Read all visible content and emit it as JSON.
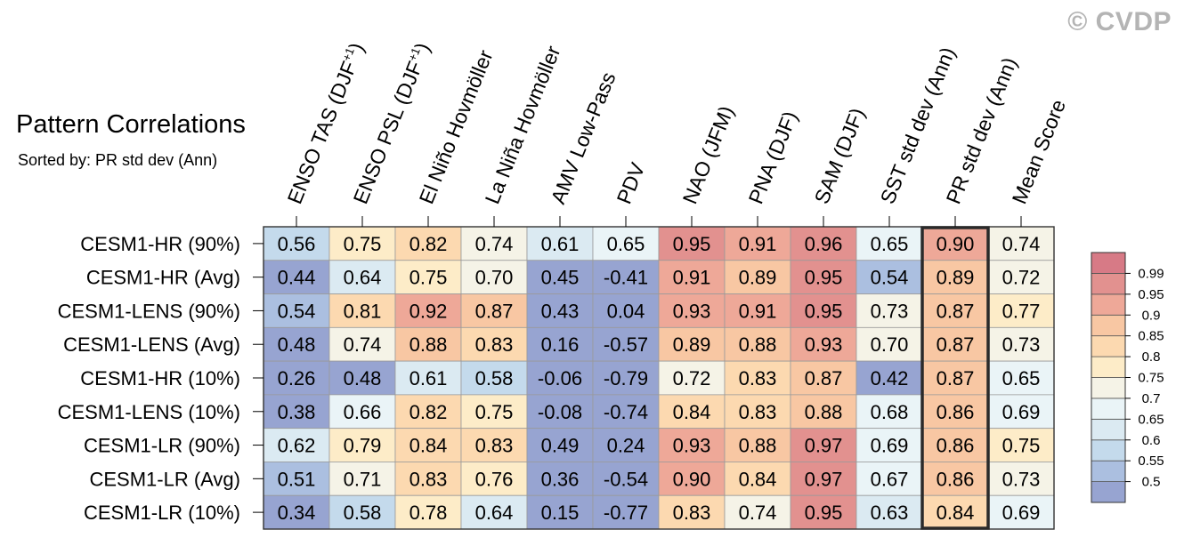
{
  "copyright": "© CVDP",
  "title": "Pattern Correlations",
  "subtitle": "Sorted by: PR std dev (Ann)",
  "chart_data": {
    "type": "heatmap",
    "columns": [
      {
        "label": "ENSO TAS (DJF",
        "sup": "+1",
        "tail": ")"
      },
      {
        "label": "ENSO PSL (DJF",
        "sup": "+1",
        "tail": ")"
      },
      {
        "label": "El Niño Hovmöller",
        "sup": "",
        "tail": ""
      },
      {
        "label": "La Niña Hovmöller",
        "sup": "",
        "tail": ""
      },
      {
        "label": "AMV Low-Pass",
        "sup": "",
        "tail": ""
      },
      {
        "label": "PDV",
        "sup": "",
        "tail": ""
      },
      {
        "label": "NAO (JFM)",
        "sup": "",
        "tail": ""
      },
      {
        "label": "PNA (DJF)",
        "sup": "",
        "tail": ""
      },
      {
        "label": "SAM (DJF)",
        "sup": "",
        "tail": ""
      },
      {
        "label": "SST std dev (Ann)",
        "sup": "",
        "tail": ""
      },
      {
        "label": "PR std dev (Ann)",
        "sup": "",
        "tail": ""
      },
      {
        "label": "Mean Score",
        "sup": "",
        "tail": ""
      }
    ],
    "rows": [
      "CESM1-HR (90%)",
      "CESM1-HR (Avg)",
      "CESM1-LENS (90%)",
      "CESM1-LENS (Avg)",
      "CESM1-HR (10%)",
      "CESM1-LENS (10%)",
      "CESM1-LR (90%)",
      "CESM1-LR (Avg)",
      "CESM1-LR (10%)"
    ],
    "values": [
      [
        "0.56",
        "0.75",
        "0.82",
        "0.74",
        "0.61",
        "0.65",
        "0.95",
        "0.91",
        "0.96",
        "0.65",
        "0.90",
        "0.74"
      ],
      [
        "0.44",
        "0.64",
        "0.75",
        "0.70",
        "0.45",
        "-0.41",
        "0.91",
        "0.89",
        "0.95",
        "0.54",
        "0.89",
        "0.72"
      ],
      [
        "0.54",
        "0.81",
        "0.92",
        "0.87",
        "0.43",
        "0.04",
        "0.93",
        "0.91",
        "0.95",
        "0.73",
        "0.87",
        "0.77"
      ],
      [
        "0.48",
        "0.74",
        "0.88",
        "0.83",
        "0.16",
        "-0.57",
        "0.89",
        "0.88",
        "0.93",
        "0.70",
        "0.87",
        "0.73"
      ],
      [
        "0.26",
        "0.48",
        "0.61",
        "0.58",
        "-0.06",
        "-0.79",
        "0.72",
        "0.83",
        "0.87",
        "0.42",
        "0.87",
        "0.65"
      ],
      [
        "0.38",
        "0.66",
        "0.82",
        "0.75",
        "-0.08",
        "-0.74",
        "0.84",
        "0.83",
        "0.88",
        "0.68",
        "0.86",
        "0.69"
      ],
      [
        "0.62",
        "0.79",
        "0.84",
        "0.83",
        "0.49",
        "0.24",
        "0.93",
        "0.88",
        "0.97",
        "0.69",
        "0.86",
        "0.75"
      ],
      [
        "0.51",
        "0.71",
        "0.83",
        "0.76",
        "0.36",
        "-0.54",
        "0.90",
        "0.84",
        "0.97",
        "0.67",
        "0.86",
        "0.73"
      ],
      [
        "0.34",
        "0.58",
        "0.78",
        "0.64",
        "0.15",
        "-0.77",
        "0.83",
        "0.74",
        "0.95",
        "0.63",
        "0.84",
        "0.69"
      ]
    ],
    "sorted_column": 10,
    "colorbar": {
      "levels": [
        0.5,
        0.55,
        0.6,
        0.65,
        0.7,
        0.75,
        0.8,
        0.85,
        0.9,
        0.95,
        0.99
      ],
      "labels": [
        "0.5",
        "0.55",
        "0.6",
        "0.65",
        "0.7",
        "0.75",
        "0.8",
        "0.85",
        "0.9",
        "0.95",
        "0.99"
      ],
      "colors": [
        "#97a4d1",
        "#abbfe0",
        "#c4daec",
        "#dbeaf2",
        "#eaf4f7",
        "#f5f3e7",
        "#fdecc8",
        "#fcd9b0",
        "#f8c7a3",
        "#eea898",
        "#e2918f",
        "#d77a86"
      ],
      "legend_position": "right"
    }
  }
}
